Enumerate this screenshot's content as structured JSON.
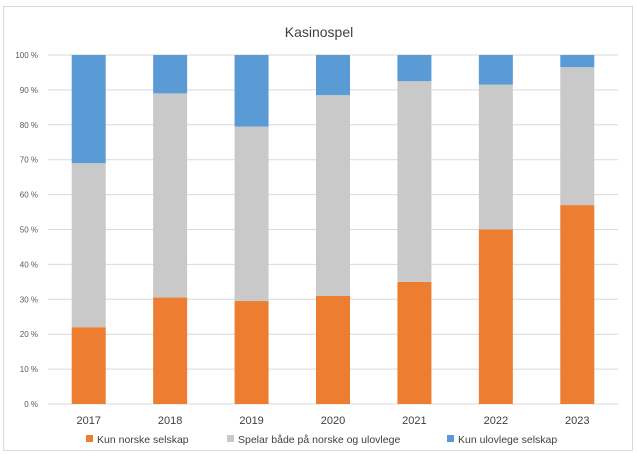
{
  "chart_data": {
    "type": "bar",
    "stacked": true,
    "percent_stacked": true,
    "title": "Kasinospel",
    "categories": [
      "2017",
      "2018",
      "2019",
      "2020",
      "2021",
      "2022",
      "2023"
    ],
    "series": [
      {
        "name": "Kun norske selskap",
        "color": "#ed7d31",
        "values": [
          22,
          30.5,
          29.5,
          31,
          35,
          50,
          57
        ]
      },
      {
        "name": "Spelar både på norske og ulovlege",
        "color": "#c9c9c9",
        "values": [
          47,
          58.5,
          50,
          57.5,
          57.5,
          41.5,
          39.5
        ]
      },
      {
        "name": "Kun ulovlege selskap",
        "color": "#5b9bd5",
        "values": [
          31,
          11,
          20.5,
          11.5,
          7.5,
          8.5,
          3.5
        ]
      }
    ],
    "yticks": [
      "0 %",
      "10 %",
      "20 %",
      "30 %",
      "40 %",
      "50 %",
      "60 %",
      "70 %",
      "80 %",
      "90 %",
      "100 %"
    ],
    "ylim": [
      0,
      100
    ],
    "grid": true,
    "legend_position": "bottom"
  }
}
